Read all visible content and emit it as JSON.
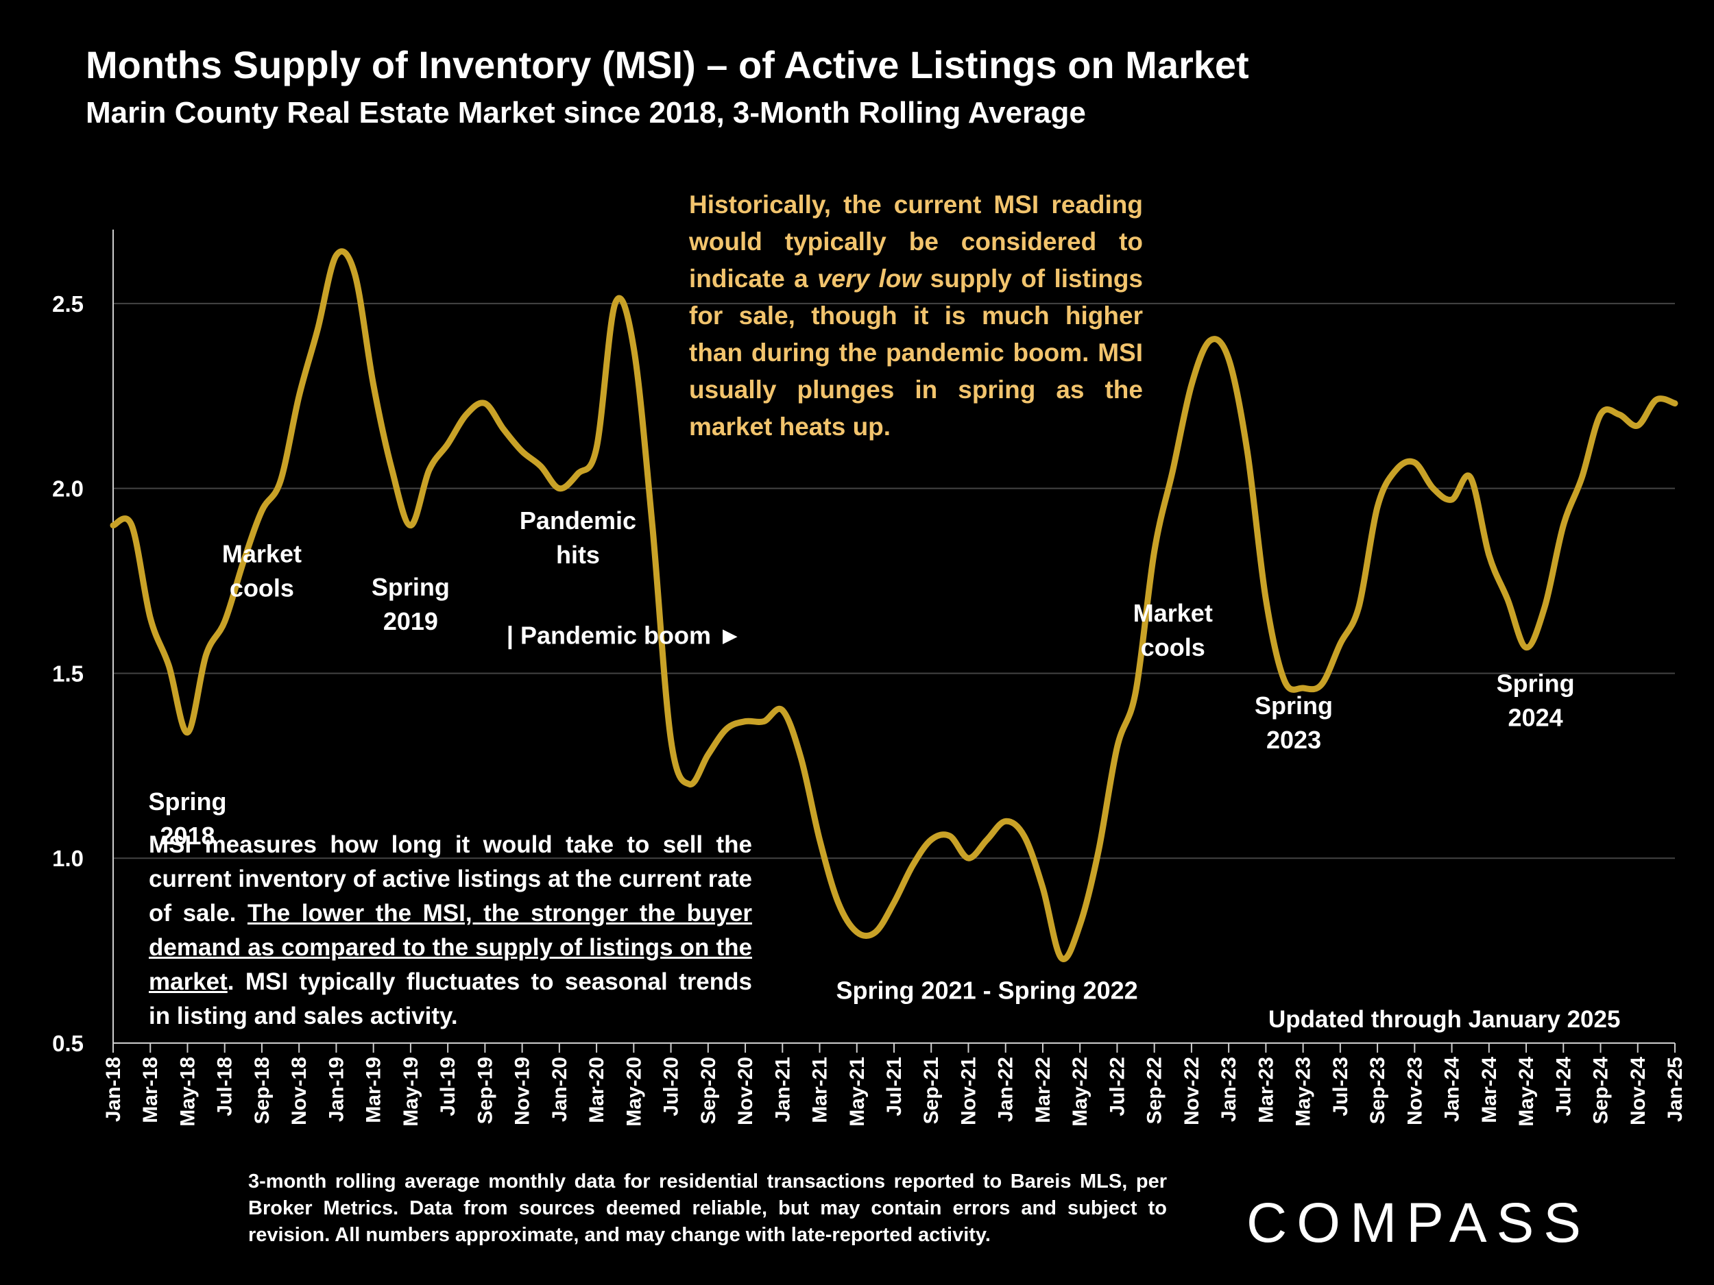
{
  "header": {
    "title": "Months Supply of Inventory (MSI) – of Active Listings on Market",
    "subtitle": "Marin County Real Estate Market since 2018, 3-Month Rolling Average"
  },
  "notes": {
    "gold_part1": "Historically, the current MSI reading would typically be considered to indicate a ",
    "gold_emph": "very low",
    "gold_part2": " supply of listings for sale, though it is much higher than during the pandemic boom. MSI usually plunges in spring as the market heats up.",
    "white_part1": "MSI measures how long it would take to sell the current inventory of active listings at the current rate of sale. ",
    "white_underlined": "The lower the MSI, the stronger the buyer demand as compared to the supply of listings on the market",
    "white_part2": ". MSI typically fluctuates to seasonal trends in listing and sales activity.",
    "updated": "Updated through January 2025",
    "footnote": "3-month rolling average monthly data for residential transactions reported to Bareis MLS, per Broker Metrics. Data from sources deemed reliable, but may contain errors and subject to revision. All numbers approximate, and may change with late-reported activity."
  },
  "logo": {
    "text": "COMPASS"
  },
  "colors": {
    "line": "#c9a227",
    "note_gold": "#f2c46d",
    "grid": "#444444",
    "background": "#000000"
  },
  "chart_data": {
    "type": "line",
    "title": "Months Supply of Inventory (MSI) – of Active Listings on Market",
    "subtitle": "Marin County Real Estate Market since 2018, 3-Month Rolling Average",
    "xlabel": "",
    "ylabel": "",
    "ylim": [
      0.5,
      2.7
    ],
    "yticks": [
      0.5,
      1.0,
      1.5,
      2.0,
      2.5
    ],
    "ytick_labels": [
      "0.5",
      "1.0",
      "1.5",
      "2.0",
      "2.5"
    ],
    "grid": "horizontal",
    "xtick_labels": [
      "Jan-18",
      "Mar-18",
      "May-18",
      "Jul-18",
      "Sep-18",
      "Nov-18",
      "Jan-19",
      "Mar-19",
      "May-19",
      "Jul-19",
      "Sep-19",
      "Nov-19",
      "Jan-20",
      "Mar-20",
      "May-20",
      "Jul-20",
      "Sep-20",
      "Nov-20",
      "Jan-21",
      "Mar-21",
      "May-21",
      "Jul-21",
      "Sep-21",
      "Nov-21",
      "Jan-22",
      "Mar-22",
      "May-22",
      "Jul-22",
      "Sep-22",
      "Nov-22",
      "Jan-23",
      "Mar-23",
      "May-23",
      "Jul-23",
      "Sep-23",
      "Nov-23",
      "Jan-24",
      "Mar-24",
      "May-24",
      "Jul-24",
      "Sep-24",
      "Nov-24",
      "Jan-25"
    ],
    "series": [
      {
        "name": "MSI 3-Month Rolling Average",
        "values": [
          1.9,
          1.9,
          1.65,
          1.52,
          1.34,
          1.55,
          1.64,
          1.8,
          1.94,
          2.02,
          2.25,
          2.43,
          2.63,
          2.58,
          2.28,
          2.05,
          1.9,
          2.05,
          2.12,
          2.2,
          2.23,
          2.16,
          2.1,
          2.06,
          2.0,
          2.04,
          2.11,
          2.5,
          2.38,
          1.9,
          1.32,
          1.2,
          1.28,
          1.35,
          1.37,
          1.37,
          1.4,
          1.27,
          1.05,
          0.88,
          0.8,
          0.8,
          0.88,
          0.98,
          1.05,
          1.06,
          1.0,
          1.05,
          1.1,
          1.06,
          0.92,
          0.73,
          0.82,
          1.02,
          1.3,
          1.45,
          1.83,
          2.05,
          2.28,
          2.4,
          2.35,
          2.1,
          1.7,
          1.48,
          1.46,
          1.47,
          1.58,
          1.68,
          1.95,
          2.05,
          2.07,
          2.0,
          1.97,
          2.03,
          1.82,
          1.7,
          1.57,
          1.68,
          1.9,
          2.03,
          2.2,
          2.2,
          2.17,
          2.24,
          2.23
        ]
      }
    ],
    "annotations": [
      {
        "text": "Spring\n2018",
        "x_index": 4,
        "y": 1.13
      },
      {
        "text": "Market\ncools",
        "x_index": 8,
        "y": 1.8
      },
      {
        "text": "Spring\n2019",
        "x_index": 16,
        "y": 1.71
      },
      {
        "text": "Pandemic\nhits",
        "x_index": 25,
        "y": 1.89
      },
      {
        "text": "| Pandemic boom ►",
        "x_index": 27.5,
        "y": 1.58
      },
      {
        "text": "Spring 2021 - Spring 2022",
        "x_index": 47,
        "y": 0.62
      },
      {
        "text": "Market\ncools",
        "x_index": 57,
        "y": 1.64
      },
      {
        "text": "Spring\n2023",
        "x_index": 63.5,
        "y": 1.39
      },
      {
        "text": "Spring\n2024",
        "x_index": 76.5,
        "y": 1.45
      }
    ]
  }
}
